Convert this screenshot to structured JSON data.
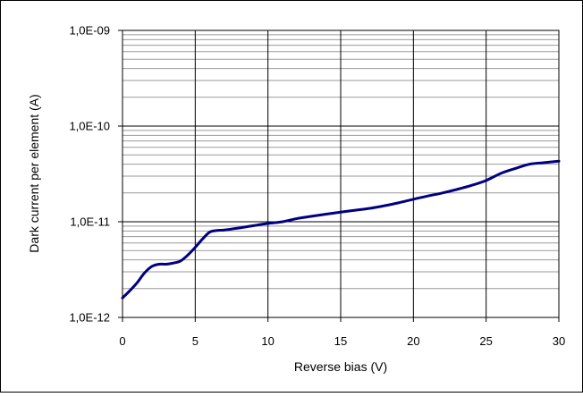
{
  "chart_data": {
    "type": "line",
    "title": "",
    "xlabel": "Reverse bias (V)",
    "ylabel": "Dark current per element (A)",
    "xlim": [
      0,
      30
    ],
    "ylim": [
      1e-12,
      1e-09
    ],
    "yscale": "log",
    "x_ticks": [
      0,
      5,
      10,
      15,
      20,
      25,
      30
    ],
    "x_tick_labels": [
      "0",
      "5",
      "10",
      "15",
      "20",
      "25",
      "30"
    ],
    "y_ticks": [
      1e-12,
      1e-11,
      1e-10,
      1e-09
    ],
    "y_tick_labels": [
      "1,0E-12",
      "1,0E-11",
      "1,0E-10",
      "1,0E-09"
    ],
    "grid": {
      "major_vertical": true,
      "minor_horizontal": true
    },
    "legend": "none",
    "series": [
      {
        "color": "#000080",
        "x": [
          0,
          0.5,
          1,
          1.5,
          2,
          2.5,
          3,
          3.5,
          4,
          4.5,
          5,
          5.5,
          6,
          6.5,
          7,
          8,
          9,
          10,
          11,
          12,
          13,
          14,
          15,
          16,
          17,
          18,
          19,
          20,
          21,
          22,
          23,
          24,
          25,
          26,
          27,
          28,
          29,
          30
        ],
        "y": [
          1.6e-12,
          1.9e-12,
          2.3e-12,
          2.9e-12,
          3.4e-12,
          3.6e-12,
          3.6e-12,
          3.7e-12,
          3.9e-12,
          4.5e-12,
          5.4e-12,
          6.6e-12,
          7.8e-12,
          8.1e-12,
          8.2e-12,
          8.6e-12,
          9.1e-12,
          9.6e-12,
          1e-11,
          1.08e-11,
          1.14e-11,
          1.2e-11,
          1.26e-11,
          1.32e-11,
          1.38e-11,
          1.47e-11,
          1.58e-11,
          1.72e-11,
          1.86e-11,
          2e-11,
          2.18e-11,
          2.4e-11,
          2.7e-11,
          3.2e-11,
          3.6e-11,
          4e-11,
          4.15e-11,
          4.3e-11
        ]
      }
    ]
  }
}
